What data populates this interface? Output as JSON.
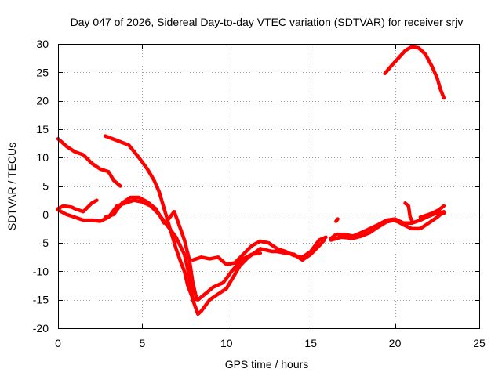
{
  "chart_data": {
    "type": "line",
    "title": "Day 047 of 2026, Sidereal Day-to-day VTEC variation (SDTVAR) for receiver srjv",
    "xlabel": "GPS time / hours",
    "ylabel": "SDTVAR / TECUs",
    "xlim": [
      0,
      25
    ],
    "ylim": [
      -20,
      30
    ],
    "xticks": [
      0,
      5,
      10,
      15,
      20,
      25
    ],
    "yticks": [
      -20,
      -15,
      -10,
      -5,
      0,
      5,
      10,
      15,
      20,
      25,
      30
    ],
    "grid": true,
    "color": "#ff0000",
    "series": [
      {
        "name": "arc-1",
        "points": [
          [
            0,
            13.3
          ],
          [
            0.5,
            12
          ],
          [
            1,
            11
          ],
          [
            1.5,
            10.5
          ],
          [
            2,
            9
          ],
          [
            2.5,
            8
          ],
          [
            3,
            7.5
          ],
          [
            3.3,
            6
          ],
          [
            3.7,
            5
          ]
        ]
      },
      {
        "name": "arc-2",
        "points": [
          [
            2.8,
            13.8
          ],
          [
            3.5,
            13
          ],
          [
            4.2,
            12.2
          ],
          [
            4.8,
            10
          ],
          [
            5.3,
            8
          ],
          [
            5.7,
            6
          ],
          [
            6,
            4
          ],
          [
            6.3,
            1
          ],
          [
            6.5,
            -1
          ],
          [
            6.7,
            -3
          ],
          [
            7,
            -6
          ],
          [
            7.3,
            -8.5
          ],
          [
            7.5,
            -10
          ],
          [
            7.7,
            -12.5
          ],
          [
            8,
            -14.8
          ],
          [
            8.3,
            -15
          ],
          [
            8.8,
            -13.8
          ],
          [
            9.2,
            -12.8
          ],
          [
            9.8,
            -12
          ],
          [
            10.3,
            -10
          ],
          [
            10.6,
            -9
          ],
          [
            11,
            -7.8
          ],
          [
            11.5,
            -7
          ],
          [
            12,
            -6.8
          ]
        ]
      },
      {
        "name": "arc-3",
        "points": [
          [
            0,
            1
          ],
          [
            0.3,
            1.5
          ],
          [
            0.8,
            1.3
          ],
          [
            1,
            1
          ],
          [
            1.5,
            0.5
          ],
          [
            2,
            2
          ],
          [
            2.3,
            2.5
          ]
        ]
      },
      {
        "name": "arc-4",
        "points": [
          [
            0,
            0.8
          ],
          [
            0.5,
            0
          ],
          [
            1,
            -0.5
          ],
          [
            1.5,
            -1
          ],
          [
            2,
            -1
          ],
          [
            2.5,
            -1.2
          ],
          [
            3,
            -0.5
          ],
          [
            3.5,
            1.5
          ],
          [
            4,
            2
          ],
          [
            4.5,
            2.5
          ],
          [
            5,
            2.2
          ],
          [
            5.5,
            1.5
          ],
          [
            6,
            0
          ],
          [
            6.5,
            -2
          ],
          [
            7,
            -4
          ],
          [
            7.5,
            -7
          ],
          [
            7.8,
            -11
          ],
          [
            8,
            -15
          ],
          [
            8.3,
            -17.5
          ],
          [
            8.5,
            -17
          ],
          [
            9,
            -15
          ],
          [
            9.5,
            -14
          ],
          [
            10,
            -13
          ],
          [
            10.4,
            -11
          ],
          [
            10.8,
            -9
          ],
          [
            11.3,
            -7.5
          ],
          [
            12,
            -6
          ],
          [
            12.7,
            -6.5
          ],
          [
            13,
            -6.5
          ],
          [
            13.5,
            -6.8
          ],
          [
            14,
            -7
          ],
          [
            14.5,
            -8
          ],
          [
            15,
            -7
          ],
          [
            15.5,
            -5.5
          ],
          [
            15.8,
            -4.5
          ]
        ]
      },
      {
        "name": "arc-5",
        "points": [
          [
            2.8,
            -0.5
          ],
          [
            3.3,
            0
          ],
          [
            3.8,
            2
          ],
          [
            4.3,
            3
          ],
          [
            4.8,
            3
          ],
          [
            5.3,
            2.2
          ],
          [
            5.8,
            1
          ],
          [
            6.1,
            -0.5
          ],
          [
            6.3,
            -1.5
          ]
        ]
      },
      {
        "name": "arc-6",
        "points": [
          [
            6.5,
            -1
          ],
          [
            6.9,
            0.5
          ],
          [
            7.2,
            -2
          ],
          [
            7.5,
            -4.5
          ],
          [
            7.8,
            -8
          ],
          [
            8,
            -12
          ],
          [
            8.2,
            -14.5
          ]
        ]
      },
      {
        "name": "arc-7",
        "points": [
          [
            8,
            -8
          ],
          [
            8.5,
            -7.5
          ],
          [
            9,
            -7.8
          ],
          [
            9.5,
            -7.5
          ],
          [
            10,
            -8.8
          ],
          [
            10.5,
            -8.5
          ],
          [
            11,
            -7
          ],
          [
            11.5,
            -5.5
          ],
          [
            12,
            -4.7
          ],
          [
            12.5,
            -5
          ],
          [
            13,
            -6
          ],
          [
            13.5,
            -6.5
          ],
          [
            14,
            -7.2
          ],
          [
            14.5,
            -7.5
          ],
          [
            15,
            -6.5
          ],
          [
            15.5,
            -4.5
          ],
          [
            15.9,
            -4
          ]
        ]
      },
      {
        "name": "arc-8",
        "points": [
          [
            16.5,
            -1.2
          ],
          [
            16.6,
            -0.8
          ]
        ]
      },
      {
        "name": "arc-9",
        "points": [
          [
            16.2,
            -4.2
          ],
          [
            16.5,
            -3.5
          ],
          [
            17,
            -3.5
          ],
          [
            17.5,
            -3.8
          ],
          [
            18,
            -3.2
          ],
          [
            18.5,
            -2.5
          ],
          [
            19,
            -1.8
          ],
          [
            19.5,
            -1
          ],
          [
            20,
            -0.8
          ],
          [
            20.5,
            -1.5
          ],
          [
            21,
            -1.5
          ],
          [
            21.5,
            -1
          ],
          [
            22,
            -0.3
          ],
          [
            22.5,
            0.3
          ],
          [
            22.9,
            0.2
          ]
        ]
      },
      {
        "name": "arc-10",
        "points": [
          [
            16.2,
            -4.5
          ],
          [
            16.8,
            -4
          ],
          [
            17.5,
            -4.2
          ],
          [
            18,
            -3.8
          ],
          [
            18.5,
            -3.2
          ],
          [
            19,
            -2.2
          ],
          [
            19.5,
            -1.3
          ],
          [
            20,
            -1
          ],
          [
            20.5,
            -1.8
          ],
          [
            21,
            -2.5
          ],
          [
            21.5,
            -2.5
          ],
          [
            22,
            -1.5
          ],
          [
            22.5,
            -0.5
          ],
          [
            22.9,
            0.5
          ]
        ]
      },
      {
        "name": "arc-11",
        "points": [
          [
            20.6,
            2
          ],
          [
            20.8,
            1.5
          ],
          [
            20.9,
            -0.5
          ],
          [
            21,
            -1
          ]
        ]
      },
      {
        "name": "arc-12",
        "points": [
          [
            21.5,
            -0.5
          ],
          [
            21.8,
            -0.2
          ],
          [
            22.2,
            0.2
          ],
          [
            22.6,
            0.8
          ],
          [
            22.9,
            1.5
          ]
        ]
      },
      {
        "name": "arc-13",
        "points": [
          [
            19.4,
            24.8
          ],
          [
            19.8,
            26.2
          ],
          [
            20.2,
            27.5
          ],
          [
            20.6,
            28.8
          ],
          [
            21,
            29.5
          ],
          [
            21.4,
            29.3
          ],
          [
            21.8,
            28.2
          ],
          [
            22.2,
            26
          ],
          [
            22.5,
            24
          ],
          [
            22.7,
            22
          ],
          [
            22.9,
            20.5
          ]
        ]
      }
    ]
  }
}
